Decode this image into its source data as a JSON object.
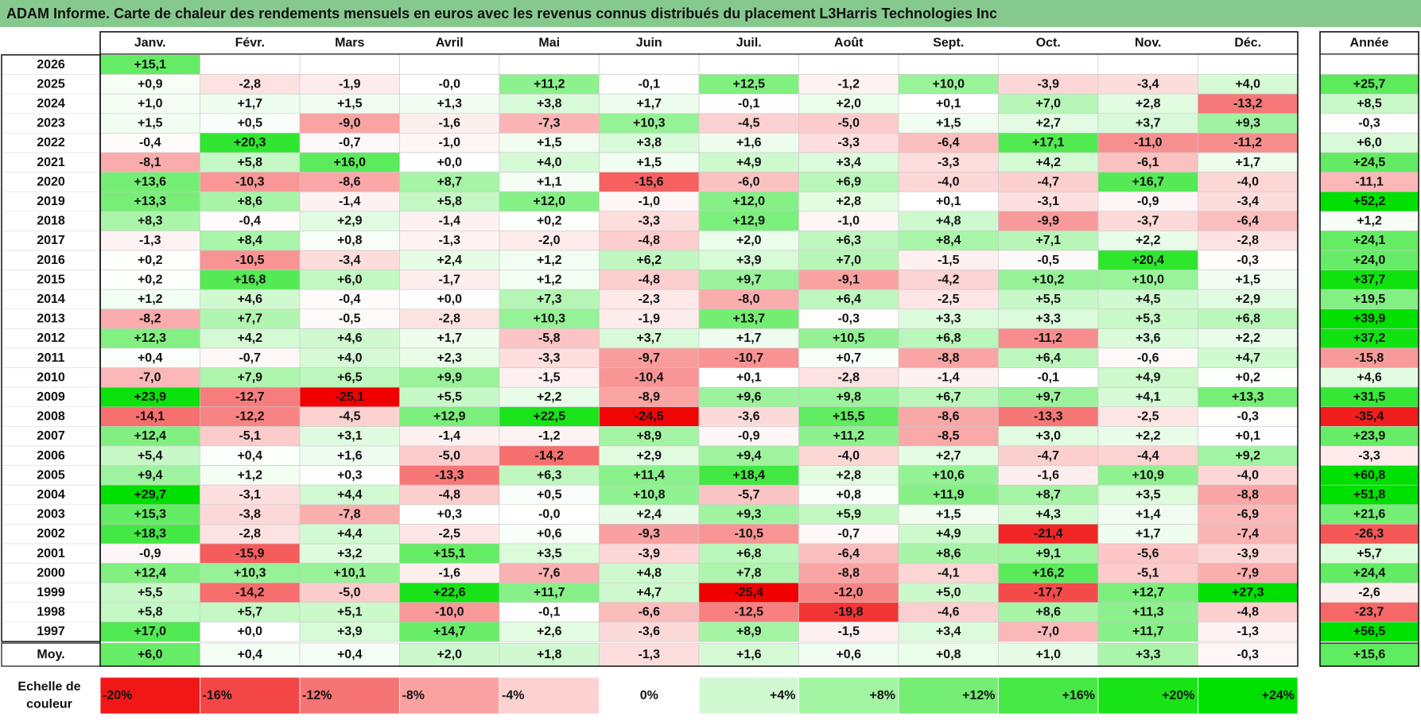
{
  "title": "ADAM Informe. Carte de chaleur des rendements mensuels en euros avec les revenus connus distribués du placement L3Harris Technologies Inc",
  "chart_data": {
    "type": "heatmap",
    "months": [
      "Janv.",
      "Févr.",
      "Mars",
      "Avril",
      "Mai",
      "Juin",
      "Juil.",
      "Août",
      "Sept.",
      "Oct.",
      "Nov.",
      "Déc."
    ],
    "annual_label": "Année",
    "average_label": "Moy.",
    "years": [
      "2026",
      "2025",
      "2024",
      "2023",
      "2022",
      "2021",
      "2020",
      "2019",
      "2018",
      "2017",
      "2016",
      "2015",
      "2014",
      "2013",
      "2012",
      "2011",
      "2010",
      "2009",
      "2008",
      "2007",
      "2006",
      "2005",
      "2004",
      "2003",
      "2002",
      "2001",
      "2000",
      "1999",
      "1998",
      "1997"
    ],
    "values": [
      [
        "+15,1",
        null,
        null,
        null,
        null,
        null,
        null,
        null,
        null,
        null,
        null,
        null
      ],
      [
        "+0,9",
        "-2,8",
        "-1,9",
        "-0,0",
        "+11,2",
        "-0,1",
        "+12,5",
        "-1,2",
        "+10,0",
        "-3,9",
        "-3,4",
        "+4,0"
      ],
      [
        "+1,0",
        "+1,7",
        "+1,5",
        "+1,3",
        "+3,8",
        "+1,7",
        "-0,1",
        "+2,0",
        "+0,1",
        "+7,0",
        "+2,8",
        "-13,2"
      ],
      [
        "+1,5",
        "+0,5",
        "-9,0",
        "-1,6",
        "-7,3",
        "+10,3",
        "-4,5",
        "-5,0",
        "+1,5",
        "+2,7",
        "+3,7",
        "+9,3"
      ],
      [
        "-0,4",
        "+20,3",
        "-0,7",
        "-1,0",
        "+1,5",
        "+3,8",
        "+1,6",
        "-3,3",
        "-6,4",
        "+17,1",
        "-11,0",
        "-11,2"
      ],
      [
        "-8,1",
        "+5,8",
        "+16,0",
        "+0,0",
        "+4,0",
        "+1,5",
        "+4,9",
        "+3,4",
        "-3,3",
        "+4,2",
        "-6,1",
        "+1,7"
      ],
      [
        "+13,6",
        "-10,3",
        "-8,6",
        "+8,7",
        "+1,1",
        "-15,6",
        "-6,0",
        "+6,9",
        "-4,0",
        "-4,7",
        "+16,7",
        "-4,0"
      ],
      [
        "+13,3",
        "+8,6",
        "-1,4",
        "+5,8",
        "+12,0",
        "-1,0",
        "+12,0",
        "+2,8",
        "+0,1",
        "-3,1",
        "-0,9",
        "-3,4"
      ],
      [
        "+8,3",
        "-0,4",
        "+2,9",
        "-1,4",
        "+0,2",
        "-3,3",
        "+12,9",
        "-1,0",
        "+4,8",
        "-9,9",
        "-3,7",
        "-6,4"
      ],
      [
        "-1,3",
        "+8,4",
        "+0,8",
        "-1,3",
        "-2,0",
        "-4,8",
        "+2,0",
        "+6,3",
        "+8,4",
        "+7,1",
        "+2,2",
        "-2,8"
      ],
      [
        "+0,2",
        "-10,5",
        "-3,4",
        "+2,4",
        "+1,2",
        "+6,2",
        "+3,9",
        "+7,0",
        "-1,5",
        "-0,5",
        "+20,4",
        "-0,3"
      ],
      [
        "+0,2",
        "+16,8",
        "+6,0",
        "-1,7",
        "+1,2",
        "-4,8",
        "+9,7",
        "-9,1",
        "-4,2",
        "+10,2",
        "+10,0",
        "+1,5"
      ],
      [
        "+1,2",
        "+4,6",
        "-0,4",
        "+0,0",
        "+7,3",
        "-2,3",
        "-8,0",
        "+6,4",
        "-2,5",
        "+5,5",
        "+4,5",
        "+2,9"
      ],
      [
        "-8,2",
        "+7,7",
        "-0,5",
        "-2,8",
        "+10,3",
        "-1,9",
        "+13,7",
        "-0,3",
        "+3,3",
        "+3,3",
        "+5,3",
        "+6,8"
      ],
      [
        "+12,3",
        "+4,2",
        "+4,6",
        "+1,7",
        "-5,8",
        "+3,7",
        "+1,7",
        "+10,5",
        "+6,8",
        "-11,2",
        "+3,6",
        "+2,2"
      ],
      [
        "+0,4",
        "-0,7",
        "+4,0",
        "+2,3",
        "-3,3",
        "-9,7",
        "-10,7",
        "+0,7",
        "-8,8",
        "+6,4",
        "-0,6",
        "+4,7"
      ],
      [
        "-7,0",
        "+7,9",
        "+6,5",
        "+9,9",
        "-1,5",
        "-10,4",
        "+0,1",
        "-2,8",
        "-1,4",
        "-0,1",
        "+4,9",
        "+0,2"
      ],
      [
        "+23,9",
        "-12,7",
        "-25,1",
        "+5,5",
        "+2,2",
        "-8,9",
        "+9,6",
        "+9,8",
        "+6,7",
        "+9,7",
        "+4,1",
        "+13,3"
      ],
      [
        "-14,1",
        "-12,2",
        "-4,5",
        "+12,9",
        "+22,5",
        "-24,5",
        "-3,6",
        "+15,5",
        "-8,6",
        "-13,3",
        "-2,5",
        "-0,3"
      ],
      [
        "+12,4",
        "-5,1",
        "+3,1",
        "-1,4",
        "-1,2",
        "+8,9",
        "-0,9",
        "+11,2",
        "-8,5",
        "+3,0",
        "+2,2",
        "+0,1"
      ],
      [
        "+5,4",
        "+0,4",
        "+1,6",
        "-5,0",
        "-14,2",
        "+2,9",
        "+9,4",
        "-4,0",
        "+2,7",
        "-4,7",
        "-4,4",
        "+9,2"
      ],
      [
        "+9,4",
        "+1,2",
        "+0,3",
        "-13,3",
        "+6,3",
        "+11,4",
        "+18,4",
        "+2,8",
        "+10,6",
        "-1,6",
        "+10,9",
        "-4,0"
      ],
      [
        "+29,7",
        "-3,1",
        "+4,4",
        "-4,8",
        "+0,5",
        "+10,8",
        "-5,7",
        "+0,8",
        "+11,9",
        "+8,7",
        "+3,5",
        "-8,8"
      ],
      [
        "+15,3",
        "-3,8",
        "-7,8",
        "+0,3",
        "-0,0",
        "+2,4",
        "+9,3",
        "+5,9",
        "+1,5",
        "+4,3",
        "+1,4",
        "-6,9"
      ],
      [
        "+18,3",
        "-2,8",
        "+4,4",
        "-2,5",
        "+0,6",
        "-9,3",
        "-10,5",
        "-0,7",
        "+4,9",
        "-21,4",
        "+1,7",
        "-7,4"
      ],
      [
        "-0,9",
        "-15,9",
        "+3,2",
        "+15,1",
        "+3,5",
        "-3,9",
        "+6,8",
        "-6,4",
        "+8,6",
        "+9,1",
        "-5,6",
        "-3,9"
      ],
      [
        "+12,4",
        "+10,3",
        "+10,1",
        "-1,6",
        "-7,6",
        "+4,8",
        "+7,8",
        "-8,8",
        "-4,1",
        "+16,2",
        "-5,1",
        "-7,9"
      ],
      [
        "+5,5",
        "-14,2",
        "-5,0",
        "+22,6",
        "+11,7",
        "+4,7",
        "-25,4",
        "-12,0",
        "+5,0",
        "-17,7",
        "+12,7",
        "+27,3"
      ],
      [
        "+5,8",
        "+5,7",
        "+5,1",
        "-10,0",
        "-0,1",
        "-6,6",
        "-12,5",
        "-19,8",
        "-4,6",
        "+8,6",
        "+11,3",
        "-4,8"
      ],
      [
        "+17,0",
        "+0,0",
        "+3,9",
        "+14,7",
        "+2,6",
        "-3,6",
        "+8,9",
        "-1,5",
        "+3,4",
        "-7,0",
        "+11,7",
        "-1,3"
      ]
    ],
    "annual": [
      null,
      "+25,7",
      "+8,5",
      "-0,3",
      "+6,0",
      "+24,5",
      "-11,1",
      "+52,2",
      "+1,2",
      "+24,1",
      "+24,0",
      "+37,7",
      "+19,5",
      "+39,9",
      "+37,2",
      "-15,8",
      "+4,6",
      "+31,5",
      "-35,4",
      "+23,9",
      "-3,3",
      "+60,8",
      "+51,8",
      "+21,6",
      "-26,3",
      "+5,7",
      "+24,4",
      "-2,6",
      "-23,7",
      "+56,5"
    ],
    "averages": [
      "+6,0",
      "+0,4",
      "+0,4",
      "+2,0",
      "+1,8",
      "-1,3",
      "+1,6",
      "+0,6",
      "+0,8",
      "+1,0",
      "+3,3",
      "-0,3"
    ],
    "average_annual": "+15,6",
    "scale_label_line1": "Echelle de",
    "scale_label_line2": "couleur",
    "scale": [
      "-20%",
      "-16%",
      "-12%",
      "-8%",
      "-4%",
      "0%",
      "+4%",
      "+8%",
      "+12%",
      "+16%",
      "+20%",
      "+24%"
    ],
    "scale_values": [
      -20,
      -16,
      -12,
      -8,
      -4,
      0,
      4,
      8,
      12,
      16,
      20,
      24
    ],
    "colors": {
      "title_bg": "#86c98f",
      "positive_max": "#00e000",
      "negative_max": "#f00000",
      "neutral": "#ffffff",
      "grid": "#c8c8c8",
      "border": "#111111"
    }
  }
}
